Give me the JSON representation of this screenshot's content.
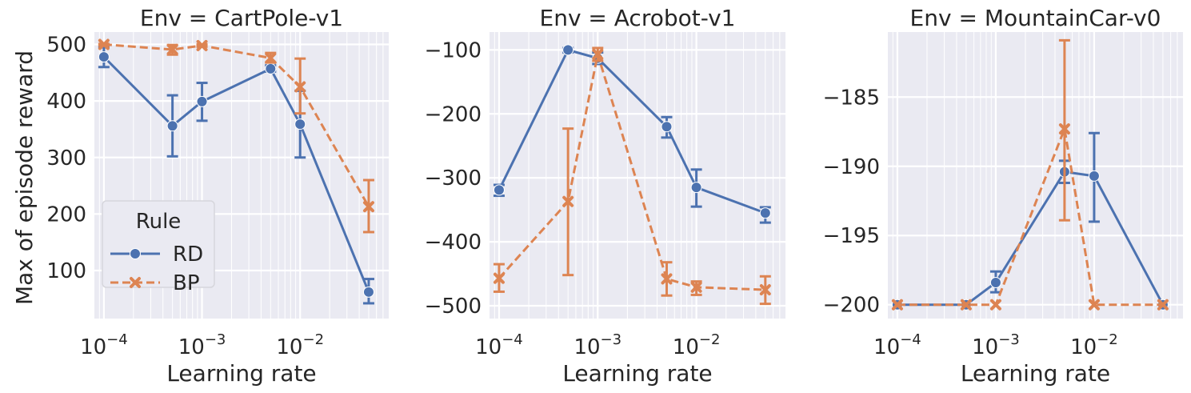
{
  "figure": {
    "ylabel": "Max of episode reward",
    "xlabel": "Learning rate",
    "legend": {
      "title": "Rule",
      "placement": "lower-left of first panel",
      "entries": [
        "RD",
        "BP"
      ]
    },
    "colors": {
      "RD": "#4c72b0",
      "BP": "#dd8452",
      "background": "#eaeaf2",
      "grid": "#ffffff"
    }
  },
  "chart_data": [
    {
      "type": "line",
      "title": "Env = CartPole-v1",
      "xscale": "log",
      "xlabel": "Learning rate",
      "ylabel": "Max of episode reward",
      "xlim": [
        8e-05,
        0.08
      ],
      "ylim": [
        15,
        522
      ],
      "xticks": [
        {
          "value": 0.0001,
          "base": "10",
          "exp": "−4"
        },
        {
          "value": 0.001,
          "base": "10",
          "exp": "−3"
        },
        {
          "value": 0.01,
          "base": "10",
          "exp": "−2"
        }
      ],
      "yticks": [
        100,
        200,
        300,
        400,
        500
      ],
      "x": [
        0.0001,
        0.0005,
        0.001,
        0.005,
        0.01,
        0.05
      ],
      "series": [
        {
          "name": "RD",
          "marker": "circle",
          "dash": "solid",
          "values": [
            478,
            356,
            399,
            457,
            359,
            62
          ],
          "err_low": [
            460,
            302,
            365,
            452,
            300,
            42
          ],
          "err_high": [
            495,
            410,
            432,
            463,
            418,
            85
          ]
        },
        {
          "name": "BP",
          "marker": "x",
          "dash": "dashed",
          "values": [
            500,
            491,
            498,
            476,
            425,
            213
          ],
          "err_low": [
            498,
            482,
            496,
            468,
            378,
            168
          ],
          "err_high": [
            501,
            499,
            500,
            485,
            475,
            260
          ]
        }
      ],
      "grid": true
    },
    {
      "type": "line",
      "title": "Env = Acrobot-v1",
      "xscale": "log",
      "xlabel": "Learning rate",
      "ylabel": "",
      "xlim": [
        8e-05,
        0.08
      ],
      "ylim": [
        -520,
        -72
      ],
      "xticks": [
        {
          "value": 0.0001,
          "base": "10",
          "exp": "−4"
        },
        {
          "value": 0.001,
          "base": "10",
          "exp": "−3"
        },
        {
          "value": 0.01,
          "base": "10",
          "exp": "−2"
        }
      ],
      "yticks": [
        -500,
        -400,
        -300,
        -200,
        -100
      ],
      "ytick_labels": [
        "−500",
        "−400",
        "−300",
        "−200",
        "−100"
      ],
      "x": [
        0.0001,
        0.0005,
        0.001,
        0.005,
        0.01,
        0.05
      ],
      "series": [
        {
          "name": "RD",
          "marker": "circle",
          "dash": "solid",
          "values": [
            -319,
            -100,
            -113,
            -220,
            -315,
            -355
          ],
          "err_low": [
            -328,
            -104,
            -122,
            -237,
            -345,
            -370
          ],
          "err_high": [
            -311,
            -97,
            -104,
            -205,
            -287,
            -346
          ]
        },
        {
          "name": "BP",
          "marker": "x",
          "dash": "dashed",
          "values": [
            -457,
            -337,
            -107,
            -458,
            -471,
            -475
          ],
          "err_low": [
            -478,
            -452,
            -117,
            -484,
            -483,
            -497
          ],
          "err_high": [
            -435,
            -223,
            -97,
            -432,
            -462,
            -454
          ]
        }
      ],
      "grid": true
    },
    {
      "type": "line",
      "title": "Env = MountainCar-v0",
      "xscale": "log",
      "xlabel": "Learning rate",
      "ylabel": "",
      "xlim": [
        8e-05,
        0.08
      ],
      "ylim": [
        -201,
        -180.3
      ],
      "xticks": [
        {
          "value": 0.0001,
          "base": "10",
          "exp": "−4"
        },
        {
          "value": 0.001,
          "base": "10",
          "exp": "−3"
        },
        {
          "value": 0.01,
          "base": "10",
          "exp": "−2"
        }
      ],
      "yticks": [
        -200,
        -195,
        -190,
        -185
      ],
      "ytick_labels": [
        "−200",
        "−195",
        "−190",
        "−185"
      ],
      "x": [
        0.0001,
        0.0005,
        0.001,
        0.005,
        0.01,
        0.05
      ],
      "series": [
        {
          "name": "RD",
          "marker": "circle",
          "dash": "solid",
          "values": [
            -200,
            -200,
            -198.4,
            -190.4,
            -190.7,
            -200
          ],
          "err_low": [
            -200,
            -200,
            -199.1,
            -191.2,
            -194,
            -200
          ],
          "err_high": [
            -200,
            -200,
            -197.6,
            -189.6,
            -187.6,
            -200
          ]
        },
        {
          "name": "BP",
          "marker": "x",
          "dash": "dashed",
          "values": [
            -200,
            -200,
            -200,
            -187.3,
            -200,
            -200
          ],
          "err_low": [
            -200,
            -200,
            -200,
            -193.9,
            -200,
            -200
          ],
          "err_high": [
            -200,
            -200,
            -200,
            -180.9,
            -200,
            -200
          ]
        }
      ],
      "grid": true
    }
  ]
}
